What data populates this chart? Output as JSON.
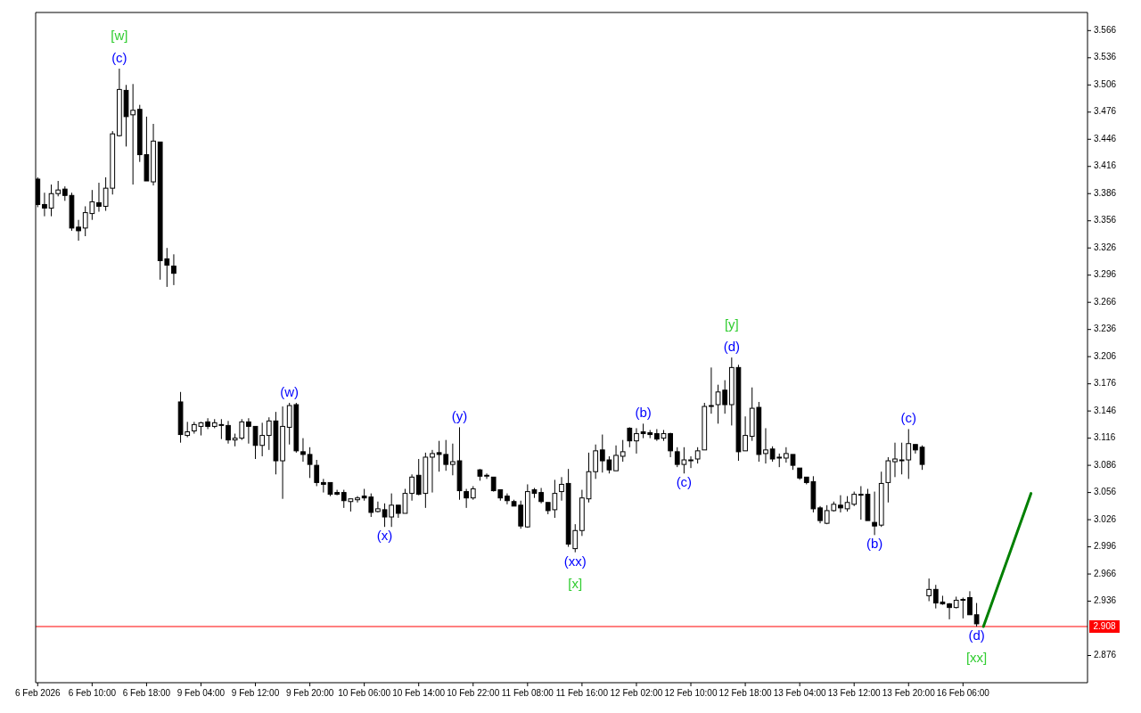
{
  "chart_data": {
    "type": "candlestick",
    "categories": [
      "6 Feb 2026",
      null,
      null,
      null,
      null,
      null,
      null,
      null,
      "6 Feb 10:00",
      null,
      null,
      null,
      null,
      null,
      null,
      null,
      "6 Feb 18:00",
      null,
      null,
      null,
      null,
      null,
      null,
      null,
      "9 Feb 04:00",
      null,
      null,
      null,
      null,
      null,
      null,
      null,
      "9 Feb 12:00",
      null,
      null,
      null,
      null,
      null,
      null,
      null,
      "9 Feb 20:00",
      null,
      null,
      null,
      null,
      null,
      null,
      null,
      "10 Feb 06:00",
      null,
      null,
      null,
      null,
      null,
      null,
      null,
      "10 Feb 14:00",
      null,
      null,
      null,
      null,
      null,
      null,
      null,
      "10 Feb 22:00",
      null,
      null,
      null,
      null,
      null,
      null,
      null,
      "11 Feb 08:00",
      null,
      null,
      null,
      null,
      null,
      null,
      null,
      "11 Feb 16:00",
      null,
      null,
      null,
      null,
      null,
      null,
      null,
      "12 Feb 02:00",
      null,
      null,
      null,
      null,
      null,
      null,
      null,
      "12 Feb 10:00",
      null,
      null,
      null,
      null,
      null,
      null,
      null,
      "12 Feb 18:00",
      null,
      null,
      null,
      null,
      null,
      null,
      null,
      "13 Feb 04:00",
      null,
      null,
      null,
      null,
      null,
      null,
      null,
      "13 Feb 12:00",
      null,
      null,
      null,
      null,
      null,
      null,
      null,
      "13 Feb 20:00",
      null,
      null,
      null,
      null,
      null,
      null,
      null,
      "16 Feb 06:00",
      null,
      null,
      null,
      null,
      null,
      null,
      null,
      null,
      null,
      null,
      null,
      null,
      null,
      null,
      null,
      null,
      null,
      null
    ],
    "ohlc": [
      [
        3.402,
        3.404,
        3.371,
        3.374
      ],
      [
        3.374,
        3.387,
        3.361,
        3.37
      ],
      [
        3.37,
        3.396,
        3.361,
        3.386
      ],
      [
        3.386,
        3.4,
        3.383,
        3.39
      ],
      [
        3.391,
        3.394,
        3.378,
        3.384
      ],
      [
        3.384,
        3.387,
        3.345,
        3.348
      ],
      [
        3.349,
        3.357,
        3.334,
        3.345
      ],
      [
        3.348,
        3.372,
        3.339,
        3.365
      ],
      [
        3.364,
        3.39,
        3.357,
        3.377
      ],
      [
        3.376,
        3.398,
        3.366,
        3.372
      ],
      [
        3.372,
        3.404,
        3.367,
        3.392
      ],
      [
        3.392,
        3.455,
        3.385,
        3.452
      ],
      [
        3.45,
        3.524,
        3.449,
        3.501
      ],
      [
        3.5,
        3.506,
        3.438,
        3.471
      ],
      [
        3.473,
        3.507,
        3.396,
        3.478
      ],
      [
        3.479,
        3.484,
        3.421,
        3.429
      ],
      [
        3.429,
        3.471,
        3.4,
        3.4
      ],
      [
        3.399,
        3.463,
        3.395,
        3.444
      ],
      [
        3.443,
        3.443,
        3.291,
        3.312
      ],
      [
        3.314,
        3.326,
        3.283,
        3.307
      ],
      [
        3.306,
        3.319,
        3.285,
        3.298
      ],
      [
        3.156,
        3.167,
        3.111,
        3.12
      ],
      [
        3.119,
        3.134,
        3.117,
        3.123
      ],
      [
        3.124,
        3.134,
        3.121,
        3.131
      ],
      [
        3.129,
        3.134,
        3.119,
        3.133
      ],
      [
        3.134,
        3.138,
        3.126,
        3.129
      ],
      [
        3.129,
        3.137,
        3.127,
        3.133
      ],
      [
        3.131,
        3.137,
        3.115,
        3.131
      ],
      [
        3.13,
        3.135,
        3.11,
        3.114
      ],
      [
        3.114,
        3.121,
        3.107,
        3.116
      ],
      [
        3.116,
        3.137,
        3.114,
        3.134
      ],
      [
        3.134,
        3.138,
        3.11,
        3.129
      ],
      [
        3.129,
        3.129,
        3.093,
        3.108
      ],
      [
        3.108,
        3.133,
        3.096,
        3.119
      ],
      [
        3.119,
        3.139,
        3.103,
        3.135
      ],
      [
        3.135,
        3.145,
        3.076,
        3.091
      ],
      [
        3.091,
        3.151,
        3.049,
        3.129
      ],
      [
        3.128,
        3.155,
        3.109,
        3.152
      ],
      [
        3.153,
        3.155,
        3.1,
        3.102
      ],
      [
        3.101,
        3.116,
        3.09,
        3.098
      ],
      [
        3.098,
        3.106,
        3.072,
        3.087
      ],
      [
        3.086,
        3.092,
        3.063,
        3.067
      ],
      [
        3.067,
        3.071,
        3.056,
        3.065
      ],
      [
        3.067,
        3.067,
        3.052,
        3.054
      ],
      [
        3.056,
        3.059,
        3.053,
        3.054
      ],
      [
        3.056,
        3.059,
        3.039,
        3.047
      ],
      [
        3.046,
        3.049,
        3.035,
        3.049
      ],
      [
        3.048,
        3.052,
        3.045,
        3.05
      ],
      [
        3.052,
        3.06,
        3.047,
        3.05
      ],
      [
        3.051,
        3.055,
        3.029,
        3.034
      ],
      [
        3.035,
        3.046,
        3.034,
        3.038
      ],
      [
        3.037,
        3.044,
        3.018,
        3.029
      ],
      [
        3.029,
        3.055,
        3.018,
        3.042
      ],
      [
        3.042,
        3.042,
        3.028,
        3.033
      ],
      [
        3.033,
        3.06,
        3.033,
        3.055
      ],
      [
        3.055,
        3.076,
        3.047,
        3.073
      ],
      [
        3.075,
        3.093,
        3.053,
        3.054
      ],
      [
        3.055,
        3.1,
        3.039,
        3.095
      ],
      [
        3.095,
        3.103,
        3.056,
        3.099
      ],
      [
        3.1,
        3.113,
        3.079,
        3.098
      ],
      [
        3.098,
        3.114,
        3.08,
        3.087
      ],
      [
        3.087,
        3.11,
        3.075,
        3.09
      ],
      [
        3.091,
        3.128,
        3.048,
        3.058
      ],
      [
        3.057,
        3.06,
        3.039,
        3.05
      ],
      [
        3.05,
        3.063,
        3.048,
        3.06
      ],
      [
        3.081,
        3.082,
        3.069,
        3.074
      ],
      [
        3.075,
        3.077,
        3.071,
        3.075
      ],
      [
        3.073,
        3.073,
        3.057,
        3.058
      ],
      [
        3.059,
        3.059,
        3.047,
        3.05
      ],
      [
        3.052,
        3.055,
        3.043,
        3.047
      ],
      [
        3.046,
        3.048,
        3.041,
        3.041
      ],
      [
        3.042,
        3.047,
        3.016,
        3.019
      ],
      [
        3.018,
        3.065,
        3.017,
        3.057
      ],
      [
        3.059,
        3.061,
        3.05,
        3.055
      ],
      [
        3.056,
        3.061,
        3.044,
        3.046
      ],
      [
        3.045,
        3.045,
        3.032,
        3.036
      ],
      [
        3.037,
        3.07,
        3.028,
        3.055
      ],
      [
        3.057,
        3.073,
        3.047,
        3.065
      ],
      [
        3.066,
        3.082,
        2.996,
        2.999
      ],
      [
        2.994,
        3.021,
        2.99,
        3.014
      ],
      [
        3.014,
        3.059,
        3.008,
        3.05
      ],
      [
        3.049,
        3.1,
        3.045,
        3.079
      ],
      [
        3.079,
        3.109,
        3.071,
        3.102
      ],
      [
        3.103,
        3.12,
        3.078,
        3.091
      ],
      [
        3.092,
        3.096,
        3.077,
        3.081
      ],
      [
        3.08,
        3.108,
        3.08,
        3.097
      ],
      [
        3.096,
        3.114,
        3.09,
        3.101
      ],
      [
        3.127,
        3.128,
        3.106,
        3.113
      ],
      [
        3.113,
        3.127,
        3.099,
        3.121
      ],
      [
        3.123,
        3.132,
        3.116,
        3.121
      ],
      [
        3.122,
        3.125,
        3.116,
        3.12
      ],
      [
        3.121,
        3.126,
        3.113,
        3.115
      ],
      [
        3.116,
        3.125,
        3.113,
        3.121
      ],
      [
        3.121,
        3.122,
        3.095,
        3.102
      ],
      [
        3.101,
        3.106,
        3.084,
        3.087
      ],
      [
        3.087,
        3.106,
        3.077,
        3.092
      ],
      [
        3.092,
        3.096,
        3.083,
        3.092
      ],
      [
        3.093,
        3.106,
        3.088,
        3.102
      ],
      [
        3.103,
        3.155,
        3.103,
        3.151
      ],
      [
        3.152,
        3.194,
        3.143,
        3.152
      ],
      [
        3.153,
        3.175,
        3.132,
        3.167
      ],
      [
        3.169,
        3.18,
        3.143,
        3.153
      ],
      [
        3.153,
        3.205,
        3.13,
        3.194
      ],
      [
        3.194,
        3.197,
        3.091,
        3.101
      ],
      [
        3.102,
        3.14,
        3.102,
        3.119
      ],
      [
        3.118,
        3.172,
        3.113,
        3.149
      ],
      [
        3.15,
        3.156,
        3.09,
        3.098
      ],
      [
        3.099,
        3.127,
        3.088,
        3.103
      ],
      [
        3.104,
        3.107,
        3.09,
        3.093
      ],
      [
        3.095,
        3.099,
        3.084,
        3.095
      ],
      [
        3.094,
        3.106,
        3.089,
        3.099
      ],
      [
        3.098,
        3.098,
        3.081,
        3.086
      ],
      [
        3.083,
        3.083,
        3.07,
        3.072
      ],
      [
        3.073,
        3.073,
        3.065,
        3.067
      ],
      [
        3.068,
        3.074,
        3.034,
        3.038
      ],
      [
        3.039,
        3.041,
        3.022,
        3.025
      ],
      [
        3.022,
        3.042,
        3.021,
        3.036
      ],
      [
        3.036,
        3.046,
        3.035,
        3.043
      ],
      [
        3.042,
        3.053,
        3.034,
        3.039
      ],
      [
        3.038,
        3.052,
        3.035,
        3.045
      ],
      [
        3.043,
        3.057,
        3.041,
        3.054
      ],
      [
        3.054,
        3.063,
        3.026,
        3.054
      ],
      [
        3.054,
        3.06,
        3.025,
        3.025
      ],
      [
        3.023,
        3.057,
        3.009,
        3.019
      ],
      [
        3.02,
        3.079,
        3.018,
        3.066
      ],
      [
        3.067,
        3.095,
        3.045,
        3.091
      ],
      [
        3.09,
        3.111,
        3.073,
        3.093
      ],
      [
        3.092,
        3.111,
        3.076,
        3.092
      ],
      [
        3.092,
        3.126,
        3.071,
        3.11
      ],
      [
        3.109,
        3.109,
        3.099,
        3.103
      ],
      [
        3.106,
        3.108,
        3.081,
        3.087
      ],
      [
        2.942,
        2.961,
        2.936,
        2.949
      ],
      [
        2.949,
        2.954,
        2.928,
        2.934
      ],
      [
        2.935,
        2.942,
        2.932,
        2.933
      ],
      [
        2.933,
        2.934,
        2.916,
        2.929
      ],
      [
        2.929,
        2.941,
        2.928,
        2.937
      ],
      [
        2.938,
        2.94,
        2.917,
        2.938
      ],
      [
        2.94,
        2.947,
        2.921,
        2.921
      ],
      [
        2.921,
        2.934,
        2.908,
        2.911
      ],
      null,
      null,
      null,
      null,
      null,
      null,
      null,
      null,
      null,
      null,
      null,
      null,
      null,
      null,
      null,
      null
    ],
    "series": [
      {
        "type": "line",
        "color": "#008000",
        "values": [
          null,
          null,
          null,
          null,
          null,
          null,
          null,
          null,
          null,
          null,
          null,
          null,
          null,
          null,
          null,
          null,
          null,
          null,
          null,
          null,
          null,
          null,
          null,
          null,
          null,
          null,
          null,
          null,
          null,
          null,
          null,
          null,
          null,
          null,
          null,
          null,
          null,
          null,
          null,
          null,
          null,
          null,
          null,
          null,
          null,
          null,
          null,
          null,
          null,
          null,
          null,
          null,
          null,
          null,
          null,
          null,
          null,
          null,
          null,
          null,
          null,
          null,
          null,
          null,
          null,
          null,
          null,
          null,
          null,
          null,
          null,
          null,
          null,
          null,
          null,
          null,
          null,
          null,
          null,
          null,
          null,
          null,
          null,
          null,
          null,
          null,
          null,
          null,
          null,
          null,
          null,
          null,
          null,
          null,
          null,
          null,
          null,
          null,
          null,
          null,
          null,
          null,
          null,
          null,
          null,
          null,
          null,
          null,
          null,
          null,
          null,
          null,
          null,
          null,
          null,
          null,
          null,
          null,
          null,
          null,
          null,
          null,
          null,
          null,
          null,
          null,
          null,
          null,
          null,
          null,
          null,
          null,
          null,
          null,
          null,
          null,
          null,
          null,
          null,
          2.908,
          2.929,
          2.95,
          2.971,
          2.992,
          3.013,
          3.034,
          3.055,
          null,
          null,
          null,
          null,
          null,
          null,
          null,
          null
        ]
      }
    ],
    "ylim": [
      2.846,
      3.586
    ],
    "yticks": [
      2.876,
      2.936,
      2.966,
      2.996,
      3.026,
      3.056,
      3.086,
      3.116,
      3.146,
      3.176,
      3.206,
      3.236,
      3.266,
      3.296,
      3.326,
      3.356,
      3.386,
      3.416,
      3.446,
      3.476,
      3.506,
      3.536,
      3.566
    ],
    "annotations": [
      "[w]",
      {
        "text": "(c)",
        "y": 3.524
      },
      {
        "text": "(w)",
        "y": 3.155
      },
      {
        "text": "(x)",
        "y": 3.018
      },
      {
        "text": "(y)",
        "y": 3.128
      },
      {
        "text": "(xx)",
        "y": 2.99
      },
      "[x]",
      {
        "text": "(b)",
        "y": 3.132
      },
      {
        "text": "(c)",
        "y": 3.077
      },
      "[y]",
      {
        "text": "(d)",
        "y": 3.205
      },
      {
        "text": "(b)",
        "y": 3.009
      },
      {
        "text": "(c)",
        "y": 3.126
      },
      {
        "text": "(d)",
        "y": 2.908
      },
      "[xx]"
    ],
    "ref_lines": [
      {
        "axis": "y",
        "value": 2.908,
        "label": "2.908",
        "color": "#ff0000"
      }
    ]
  }
}
